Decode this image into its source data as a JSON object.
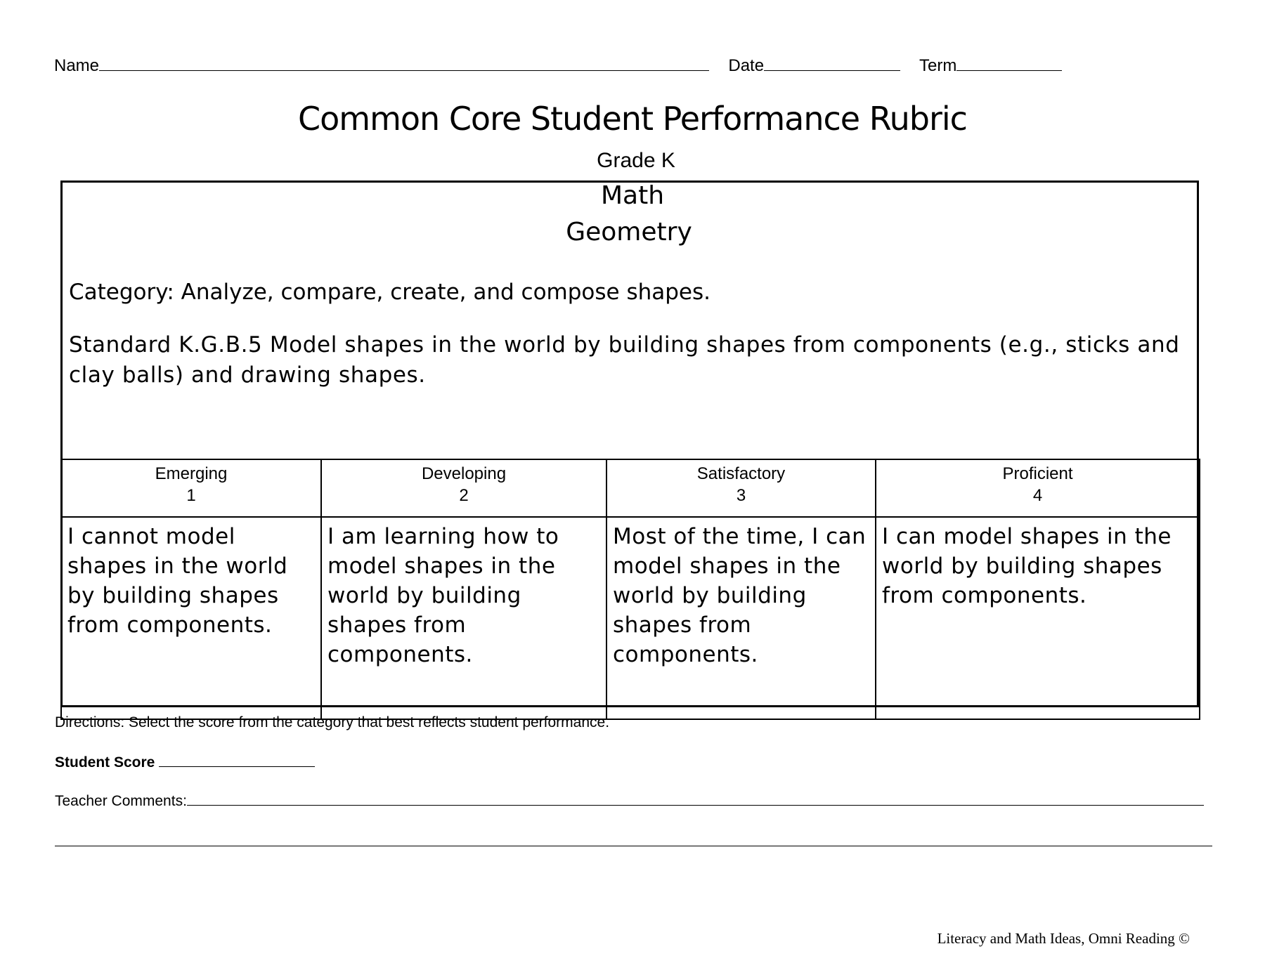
{
  "header": {
    "name_label": "Name",
    "date_label": "Date",
    "term_label": "Term"
  },
  "title": "Common Core Student Performance Rubric",
  "grade": "Grade K",
  "subject": "Math",
  "domain": "Geometry",
  "category": "Category:  Analyze, compare, create, and compose shapes.",
  "standard": "Standard K.G.B.5 Model shapes in the world by building shapes from components (e.g., sticks and clay balls) and drawing shapes.",
  "levels": [
    {
      "name": "Emerging",
      "score": "1",
      "description": "I cannot model shapes in the world by building shapes from components."
    },
    {
      "name": "Developing",
      "score": "2",
      "description": "I am learning how to model shapes in the world by building shapes from components."
    },
    {
      "name": "Satisfactory",
      "score": "3",
      "description": "Most of the time, I can model shapes in the world by building shapes from components."
    },
    {
      "name": "Proficient",
      "score": "4",
      "description": "I can model shapes in the world by building shapes from components."
    }
  ],
  "directions": "Directions:  Select the score from the category that best reflects student performance.",
  "student_score_label": "Student Score",
  "teacher_comments_label": "Teacher Comments:",
  "footer": "Literacy and Math Ideas, Omni Reading ©"
}
